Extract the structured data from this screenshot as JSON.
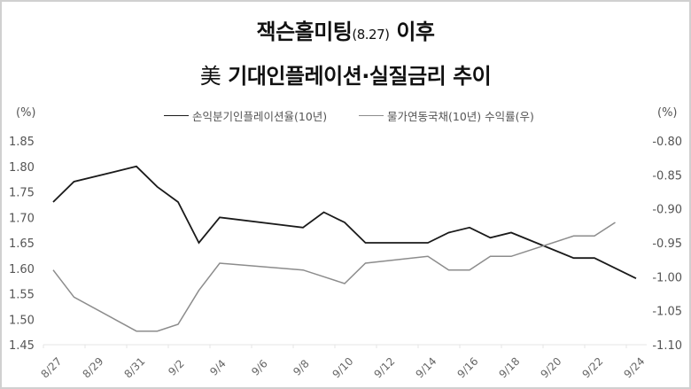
{
  "title": {
    "line1_main": "잭슨홀미팅",
    "line1_sub": "(8.27)",
    "line1_tail": " 이후",
    "line2_hanja": "美",
    "line2_text": "기대인플레이션·실질금리 추이"
  },
  "axes": {
    "left_unit": "(%)",
    "right_unit": "(%)"
  },
  "legend": [
    {
      "label": "손익분기인플레이션율(10년)",
      "color": "#1a1a1a"
    },
    {
      "label": "물가연동국채(10년) 수익률(우)",
      "color": "#8c8c8c"
    }
  ],
  "chart_data": {
    "type": "line",
    "title": "잭슨홀미팅(8.27) 이후 美 기대인플레이션·실질금리 추이",
    "x": [
      "8/27",
      "8/28",
      "8/31",
      "9/1",
      "9/2",
      "9/3",
      "9/4",
      "9/8",
      "9/9",
      "9/10",
      "9/11",
      "9/14",
      "9/15",
      "9/16",
      "9/17",
      "9/18",
      "9/21",
      "9/22",
      "9/23",
      "9/24"
    ],
    "x_day_offsets": [
      0,
      1,
      4,
      5,
      6,
      7,
      8,
      12,
      13,
      14,
      15,
      18,
      19,
      20,
      21,
      22,
      25,
      26,
      27,
      28
    ],
    "x_tick_labels": [
      "8/27",
      "8/29",
      "8/31",
      "9/2",
      "9/4",
      "9/6",
      "9/8",
      "9/10",
      "9/12",
      "9/14",
      "9/16",
      "9/18",
      "9/20",
      "9/22",
      "9/24"
    ],
    "series": [
      {
        "name": "손익분기인플레이션율(10년)",
        "axis": "left",
        "color": "#1a1a1a",
        "values": [
          1.73,
          1.77,
          1.8,
          1.76,
          1.73,
          1.65,
          1.7,
          1.68,
          1.71,
          1.69,
          1.65,
          1.65,
          1.67,
          1.68,
          1.66,
          1.67,
          1.62,
          1.62,
          1.6,
          1.58
        ]
      },
      {
        "name": "물가연동국채(10년) 수익률(우)",
        "axis": "right",
        "color": "#8c8c8c",
        "values": [
          -0.99,
          -1.03,
          -1.08,
          -1.08,
          -1.07,
          -1.02,
          -0.98,
          -0.99,
          -1.0,
          -1.01,
          -0.98,
          -0.97,
          -0.99,
          -0.99,
          -0.97,
          -0.97,
          -0.94,
          -0.94,
          -0.92,
          null
        ]
      }
    ],
    "y_left": {
      "label": "(%)",
      "range": [
        1.45,
        1.85
      ],
      "ticks": [
        "1.85",
        "1.80",
        "1.75",
        "1.70",
        "1.65",
        "1.60",
        "1.55",
        "1.50",
        "1.45"
      ]
    },
    "y_right": {
      "label": "(%)",
      "range": [
        -1.1,
        -0.8
      ],
      "ticks": [
        "-0.80",
        "-0.85",
        "-0.90",
        "-0.95",
        "-1.00",
        "-1.05",
        "-1.10"
      ]
    },
    "xlabel": "",
    "ylabel": "(%)",
    "grid": false,
    "legend_position": "top"
  }
}
